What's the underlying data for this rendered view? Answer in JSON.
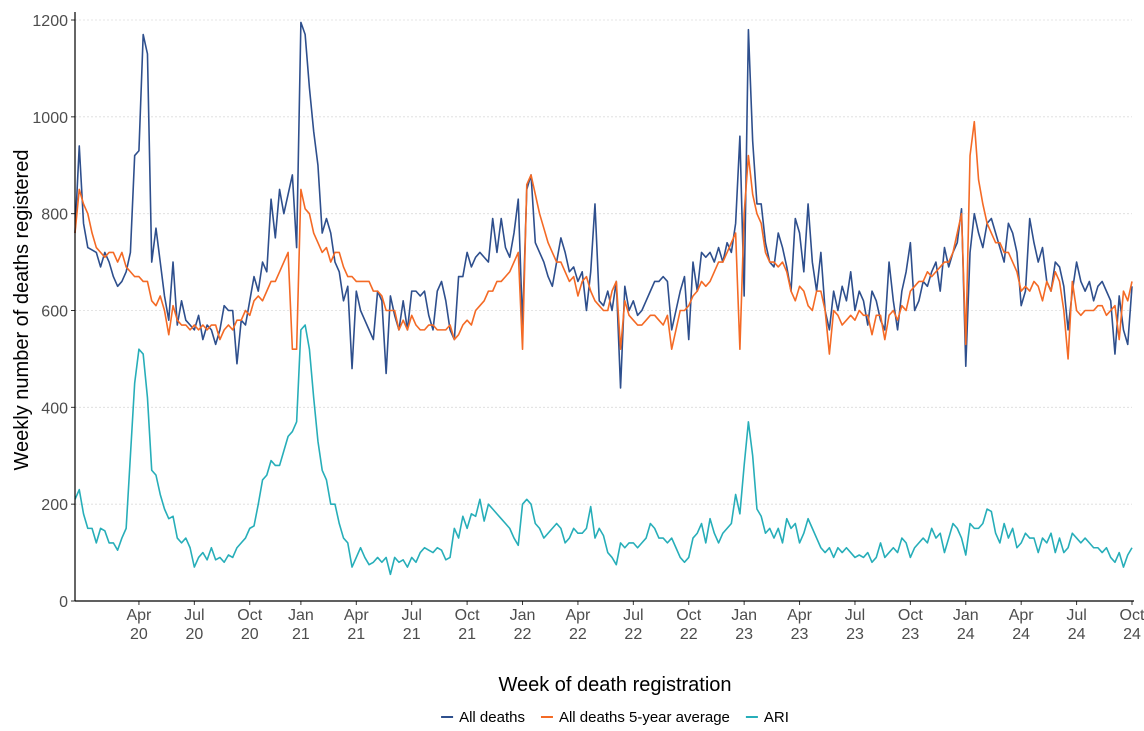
{
  "chart_data": {
    "type": "line",
    "x_label": "Week of death registration",
    "y_label": "Weekly number of deaths registered",
    "categories": [
      null,
      null,
      null,
      null,
      null,
      null,
      null,
      null,
      null,
      null,
      null,
      null,
      null,
      null,
      null,
      "Apr 20",
      null,
      null,
      null,
      null,
      null,
      null,
      null,
      null,
      null,
      null,
      null,
      null,
      "Jul 20",
      null,
      null,
      null,
      null,
      null,
      null,
      null,
      null,
      null,
      null,
      null,
      null,
      "Oct 20",
      null,
      null,
      null,
      null,
      null,
      null,
      null,
      null,
      null,
      null,
      null,
      "Jan 21",
      null,
      null,
      null,
      null,
      null,
      null,
      null,
      null,
      null,
      null,
      null,
      null,
      "Apr 21",
      null,
      null,
      null,
      null,
      null,
      null,
      null,
      null,
      null,
      null,
      null,
      null,
      "Jul 21",
      null,
      null,
      null,
      null,
      null,
      null,
      null,
      null,
      null,
      null,
      null,
      null,
      "Oct 21",
      null,
      null,
      null,
      null,
      null,
      null,
      null,
      null,
      null,
      null,
      null,
      null,
      "Jan 22",
      null,
      null,
      null,
      null,
      null,
      null,
      null,
      null,
      null,
      null,
      null,
      null,
      "Apr 22",
      null,
      null,
      null,
      null,
      null,
      null,
      null,
      null,
      null,
      null,
      null,
      null,
      "Jul 22",
      null,
      null,
      null,
      null,
      null,
      null,
      null,
      null,
      null,
      null,
      null,
      null,
      "Oct 22",
      null,
      null,
      null,
      null,
      null,
      null,
      null,
      null,
      null,
      null,
      null,
      null,
      "Jan 23",
      null,
      null,
      null,
      null,
      null,
      null,
      null,
      null,
      null,
      null,
      null,
      null,
      "Apr 23",
      null,
      null,
      null,
      null,
      null,
      null,
      null,
      null,
      null,
      null,
      null,
      null,
      "Jul 23",
      null,
      null,
      null,
      null,
      null,
      null,
      null,
      null,
      null,
      null,
      null,
      null,
      "Oct 23",
      null,
      null,
      null,
      null,
      null,
      null,
      null,
      null,
      null,
      null,
      null,
      null,
      "Jan 24",
      null,
      null,
      null,
      null,
      null,
      null,
      null,
      null,
      null,
      null,
      null,
      null,
      "Apr 24",
      null,
      null,
      null,
      null,
      null,
      null,
      null,
      null,
      null,
      null,
      null,
      null,
      "Jul 24",
      null,
      null,
      null,
      null,
      null,
      null,
      null,
      null,
      null,
      null,
      null,
      null,
      "Oct 24"
    ],
    "series": [
      {
        "name": "All deaths",
        "color": "#2e4f8d",
        "values": [
          760,
          940,
          780,
          730,
          725,
          720,
          690,
          720,
          700,
          670,
          650,
          660,
          680,
          720,
          920,
          930,
          1170,
          1130,
          700,
          770,
          700,
          630,
          580,
          700,
          570,
          620,
          580,
          570,
          560,
          590,
          540,
          570,
          560,
          530,
          560,
          610,
          600,
          600,
          490,
          580,
          570,
          620,
          670,
          640,
          700,
          680,
          830,
          750,
          850,
          800,
          840,
          880,
          730,
          1195,
          1170,
          1060,
          970,
          900,
          760,
          790,
          760,
          700,
          680,
          620,
          650,
          480,
          640,
          600,
          580,
          560,
          540,
          640,
          620,
          470,
          630,
          590,
          560,
          620,
          560,
          640,
          640,
          630,
          640,
          590,
          560,
          640,
          660,
          620,
          560,
          540,
          670,
          670,
          720,
          690,
          710,
          720,
          710,
          700,
          790,
          720,
          790,
          730,
          710,
          760,
          830,
          570,
          850,
          880,
          740,
          720,
          700,
          670,
          650,
          700,
          750,
          720,
          680,
          690,
          660,
          680,
          600,
          680,
          820,
          620,
          610,
          640,
          600,
          660,
          440,
          650,
          600,
          620,
          590,
          600,
          620,
          640,
          660,
          660,
          670,
          660,
          560,
          600,
          640,
          670,
          540,
          700,
          640,
          720,
          710,
          720,
          700,
          730,
          700,
          740,
          720,
          780,
          960,
          630,
          1180,
          950,
          820,
          820,
          740,
          700,
          690,
          760,
          730,
          690,
          640,
          790,
          760,
          680,
          820,
          700,
          640,
          720,
          600,
          560,
          640,
          600,
          650,
          620,
          680,
          600,
          640,
          620,
          570,
          640,
          620,
          580,
          560,
          700,
          620,
          560,
          640,
          680,
          740,
          600,
          620,
          660,
          650,
          680,
          700,
          640,
          730,
          690,
          720,
          740,
          810,
          485,
          720,
          800,
          760,
          730,
          780,
          790,
          760,
          730,
          700,
          780,
          760,
          720,
          610,
          640,
          790,
          740,
          700,
          730,
          660,
          640,
          700,
          690,
          650,
          560,
          640,
          700,
          660,
          640,
          660,
          620,
          650,
          660,
          640,
          620,
          510,
          630,
          560,
          530,
          650
        ]
      },
      {
        "name": "All deaths 5-year average",
        "color": "#f46a25",
        "values": [
          760,
          850,
          820,
          800,
          760,
          730,
          720,
          710,
          720,
          720,
          700,
          720,
          690,
          680,
          670,
          670,
          660,
          660,
          620,
          610,
          630,
          600,
          550,
          610,
          580,
          570,
          570,
          560,
          570,
          560,
          570,
          560,
          570,
          570,
          540,
          560,
          570,
          560,
          580,
          580,
          600,
          590,
          620,
          630,
          620,
          640,
          660,
          660,
          680,
          700,
          720,
          520,
          520,
          850,
          810,
          800,
          760,
          740,
          720,
          730,
          700,
          720,
          720,
          690,
          670,
          670,
          660,
          660,
          660,
          660,
          640,
          640,
          630,
          600,
          600,
          600,
          560,
          580,
          560,
          590,
          570,
          560,
          560,
          570,
          570,
          560,
          560,
          560,
          570,
          540,
          550,
          570,
          580,
          570,
          600,
          610,
          620,
          640,
          640,
          660,
          660,
          670,
          680,
          700,
          720,
          520,
          860,
          880,
          840,
          800,
          770,
          740,
          720,
          700,
          700,
          680,
          660,
          670,
          630,
          660,
          670,
          640,
          620,
          610,
          600,
          600,
          640,
          660,
          520,
          620,
          590,
          580,
          570,
          570,
          580,
          590,
          590,
          580,
          570,
          590,
          520,
          560,
          600,
          600,
          610,
          630,
          640,
          660,
          650,
          660,
          680,
          700,
          700,
          720,
          740,
          760,
          520,
          800,
          920,
          840,
          800,
          780,
          720,
          700,
          700,
          690,
          700,
          680,
          640,
          620,
          650,
          640,
          610,
          600,
          640,
          640,
          600,
          510,
          600,
          590,
          570,
          580,
          590,
          580,
          600,
          590,
          590,
          550,
          590,
          590,
          540,
          590,
          600,
          580,
          610,
          600,
          640,
          650,
          660,
          660,
          680,
          670,
          680,
          690,
          700,
          700,
          720,
          760,
          800,
          530,
          920,
          990,
          870,
          820,
          780,
          760,
          740,
          740,
          720,
          720,
          700,
          680,
          640,
          650,
          640,
          660,
          650,
          620,
          660,
          640,
          680,
          660,
          600,
          500,
          660,
          600,
          590,
          600,
          600,
          600,
          610,
          610,
          590,
          600,
          610,
          540,
          640,
          620,
          660
        ]
      },
      {
        "name": "ARI",
        "color": "#27aeb9",
        "values": [
          210,
          230,
          180,
          150,
          150,
          120,
          150,
          145,
          120,
          120,
          105,
          130,
          150,
          300,
          450,
          520,
          510,
          420,
          270,
          260,
          220,
          190,
          170,
          175,
          130,
          120,
          130,
          110,
          70,
          90,
          100,
          85,
          110,
          85,
          90,
          80,
          95,
          90,
          110,
          120,
          130,
          150,
          155,
          200,
          250,
          260,
          290,
          280,
          280,
          310,
          340,
          350,
          370,
          560,
          570,
          520,
          420,
          330,
          270,
          250,
          200,
          200,
          160,
          130,
          120,
          70,
          90,
          110,
          90,
          75,
          80,
          90,
          80,
          90,
          55,
          90,
          80,
          85,
          70,
          90,
          80,
          100,
          110,
          105,
          100,
          110,
          105,
          85,
          90,
          150,
          130,
          175,
          150,
          180,
          175,
          210,
          165,
          200,
          190,
          180,
          170,
          160,
          150,
          130,
          115,
          200,
          210,
          200,
          160,
          150,
          130,
          140,
          150,
          160,
          150,
          120,
          130,
          150,
          140,
          140,
          150,
          195,
          130,
          150,
          135,
          100,
          90,
          75,
          120,
          110,
          120,
          120,
          110,
          120,
          130,
          160,
          150,
          130,
          130,
          120,
          130,
          110,
          90,
          80,
          90,
          130,
          140,
          160,
          120,
          170,
          140,
          120,
          140,
          150,
          160,
          220,
          180,
          280,
          370,
          300,
          190,
          175,
          140,
          150,
          130,
          150,
          120,
          170,
          150,
          160,
          120,
          140,
          170,
          150,
          130,
          110,
          100,
          110,
          90,
          110,
          100,
          110,
          100,
          90,
          95,
          90,
          100,
          80,
          90,
          120,
          90,
          100,
          110,
          100,
          130,
          120,
          90,
          110,
          120,
          130,
          120,
          150,
          130,
          140,
          100,
          130,
          160,
          150,
          130,
          95,
          160,
          150,
          150,
          160,
          190,
          185,
          140,
          120,
          160,
          130,
          150,
          110,
          120,
          140,
          130,
          130,
          100,
          130,
          120,
          140,
          100,
          130,
          100,
          110,
          140,
          130,
          120,
          130,
          120,
          110,
          110,
          100,
          110,
          90,
          80,
          100,
          70,
          95,
          110
        ]
      }
    ],
    "ylim": [
      0,
      1200
    ],
    "yticks": [
      0,
      200,
      400,
      600,
      800,
      1000,
      1200
    ],
    "grid": true,
    "legend": "bottom"
  }
}
